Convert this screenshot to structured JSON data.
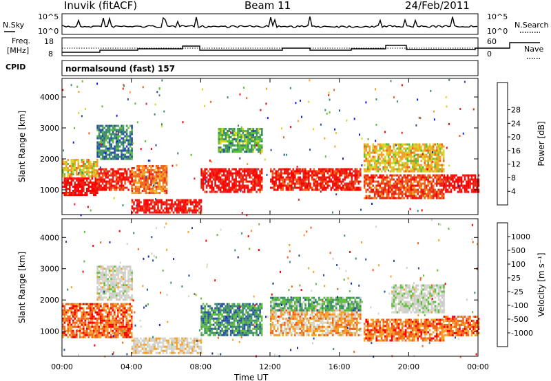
{
  "header": {
    "station": "Inuvik (fitACF)",
    "beam": "Beam 11",
    "date": "24/Feb/2011"
  },
  "noise_panel": {
    "left_label": "N.Sky",
    "right_label": "N.Search",
    "left_ticks": [
      "10^5",
      "10^0"
    ],
    "right_ticks": [
      "10^5",
      "10^0"
    ]
  },
  "freq_panel": {
    "left_label_line1": "Freq.",
    "left_label_line2": "[MHz]",
    "right_label": "Nave",
    "left_ticks": [
      "18",
      "8"
    ],
    "right_ticks": [
      "60",
      "0"
    ]
  },
  "cpid": {
    "label": "CPID",
    "value": "normalsound (fast) 157"
  },
  "colors": {
    "power_scale": [
      "#0a1cf0",
      "#284fa8",
      "#3e8f6a",
      "#5fbf3d",
      "#d8d52a",
      "#f3a12b",
      "#f0641e",
      "#e6261a",
      "#ff0000"
    ],
    "velocity_scale": [
      "#ff0000",
      "#f0641e",
      "#f3a12b",
      "#d7d7c8",
      "#cccccc",
      "#5fbf3d",
      "#3e8f6a",
      "#284fa8",
      "#1a2a9e"
    ]
  },
  "chart_data": [
    {
      "type": "heatmap",
      "name": "power",
      "ylabel": "Slant Range [km]",
      "yticks": [
        1000,
        2000,
        3000,
        4000
      ],
      "ylim": [
        200,
        4600
      ],
      "xlim_hours": [
        0,
        24
      ],
      "colorbar_title": "Power [dB]",
      "colorbar_ticks": [
        "4",
        "8",
        "12",
        "16",
        "20",
        "24",
        "28"
      ],
      "echo_bands": [
        {
          "t": [
            0.0,
            2.0
          ],
          "range": [
            800,
            1400
          ],
          "level": 0.93
        },
        {
          "t": [
            0.0,
            2.0
          ],
          "range": [
            1400,
            2000
          ],
          "level": 0.55
        },
        {
          "t": [
            2.0,
            4.0
          ],
          "range": [
            1000,
            1700
          ],
          "level": 0.85
        },
        {
          "t": [
            2.0,
            4.0
          ],
          "range": [
            2000,
            3100
          ],
          "level": 0.25
        },
        {
          "t": [
            4.0,
            6.0
          ],
          "range": [
            900,
            1800
          ],
          "level": 0.7
        },
        {
          "t": [
            4.0,
            8.0
          ],
          "range": [
            250,
            700
          ],
          "level": 0.9
        },
        {
          "t": [
            8.0,
            11.5
          ],
          "range": [
            900,
            1700
          ],
          "level": 0.9
        },
        {
          "t": [
            9.0,
            11.5
          ],
          "range": [
            2200,
            3000
          ],
          "level": 0.35
        },
        {
          "t": [
            12.0,
            17.2
          ],
          "range": [
            1000,
            1700
          ],
          "level": 0.85
        },
        {
          "t": [
            17.4,
            22.0
          ],
          "range": [
            700,
            1500
          ],
          "level": 0.78
        },
        {
          "t": [
            17.4,
            22.0
          ],
          "range": [
            1600,
            2500
          ],
          "level": 0.55
        },
        {
          "t": [
            22.0,
            24.0
          ],
          "range": [
            900,
            1500
          ],
          "level": 0.92
        }
      ]
    },
    {
      "type": "heatmap",
      "name": "velocity",
      "ylabel": "Slant Range [km]",
      "yticks": [
        1000,
        2000,
        3000,
        4000
      ],
      "ylim": [
        200,
        4600
      ],
      "xlim_hours": [
        0,
        24
      ],
      "xticks": [
        "00:00",
        "04:00",
        "08:00",
        "12:00",
        "16:00",
        "20:00",
        "00:00"
      ],
      "xlabel": "Time UT",
      "colorbar_title": "Velocity [m s⁻¹]",
      "colorbar_ticks": [
        "-1000",
        "-500",
        "-100",
        "-25",
        "25",
        "100",
        "500",
        "1000"
      ],
      "echo_bands": [
        {
          "t": [
            0.0,
            4.0
          ],
          "range": [
            800,
            1900
          ],
          "level": 0.18
        },
        {
          "t": [
            2.0,
            4.0
          ],
          "range": [
            2000,
            3100
          ],
          "level": 0.45
        },
        {
          "t": [
            4.0,
            8.0
          ],
          "range": [
            300,
            800
          ],
          "level": 0.4
        },
        {
          "t": [
            8.0,
            11.5
          ],
          "range": [
            900,
            1900
          ],
          "level": 0.72
        },
        {
          "t": [
            12.0,
            17.2
          ],
          "range": [
            900,
            1700
          ],
          "level": 0.3
        },
        {
          "t": [
            12.0,
            17.2
          ],
          "range": [
            1700,
            2100
          ],
          "level": 0.65
        },
        {
          "t": [
            17.4,
            22.0
          ],
          "range": [
            700,
            1400
          ],
          "level": 0.2
        },
        {
          "t": [
            19.0,
            22.0
          ],
          "range": [
            1600,
            2500
          ],
          "level": 0.47
        },
        {
          "t": [
            22.0,
            24.0
          ],
          "range": [
            900,
            1500
          ],
          "level": 0.18
        }
      ]
    }
  ]
}
